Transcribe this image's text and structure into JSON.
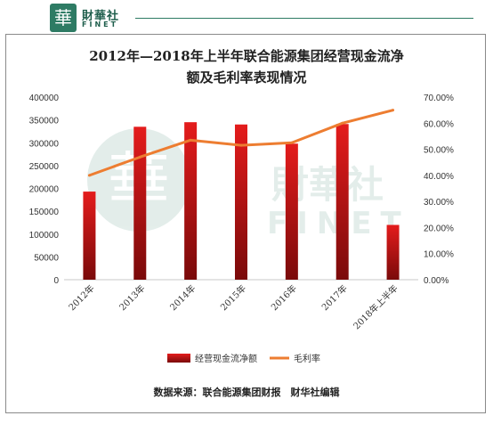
{
  "header": {
    "logo_char": "華",
    "brand_cn": "財華社",
    "brand_en": "FINET"
  },
  "watermark": {
    "char": "華",
    "cn": "財華社",
    "en": "FINET"
  },
  "chart_data": {
    "type": "bar",
    "title_line1": "2012年—2018年上半年联合能源集团经营现金流净",
    "title_line2": "额及毛利率表现情况",
    "categories": [
      "2012年",
      "2013年",
      "2014年",
      "2015年",
      "2016年",
      "2017年",
      "2018年上半年"
    ],
    "series": [
      {
        "name": "经营现金流净额",
        "type": "bar",
        "axis": "left",
        "values": [
          193000,
          335000,
          345000,
          340000,
          298000,
          341000,
          120000
        ]
      },
      {
        "name": "毛利率",
        "type": "line",
        "axis": "right",
        "values": [
          0.4,
          0.47,
          0.535,
          0.515,
          0.525,
          0.6,
          0.65
        ]
      }
    ],
    "y_left": {
      "ylim": [
        0,
        400000
      ],
      "ticks": [
        "0",
        "50000",
        "100000",
        "150000",
        "200000",
        "250000",
        "300000",
        "350000",
        "400000"
      ]
    },
    "y_right": {
      "ylim": [
        0,
        0.7
      ],
      "ticks": [
        "0.00%",
        "10.00%",
        "20.00%",
        "30.00%",
        "40.00%",
        "50.00%",
        "60.00%",
        "70.00%"
      ]
    },
    "legend_position": "bottom",
    "colors": {
      "bar_top": "#e41c1c",
      "bar_bottom": "#7a0a0a",
      "line": "#ed7d31"
    }
  },
  "footer": {
    "source": "数据来源：联合能源集团财报　财华社编辑"
  }
}
